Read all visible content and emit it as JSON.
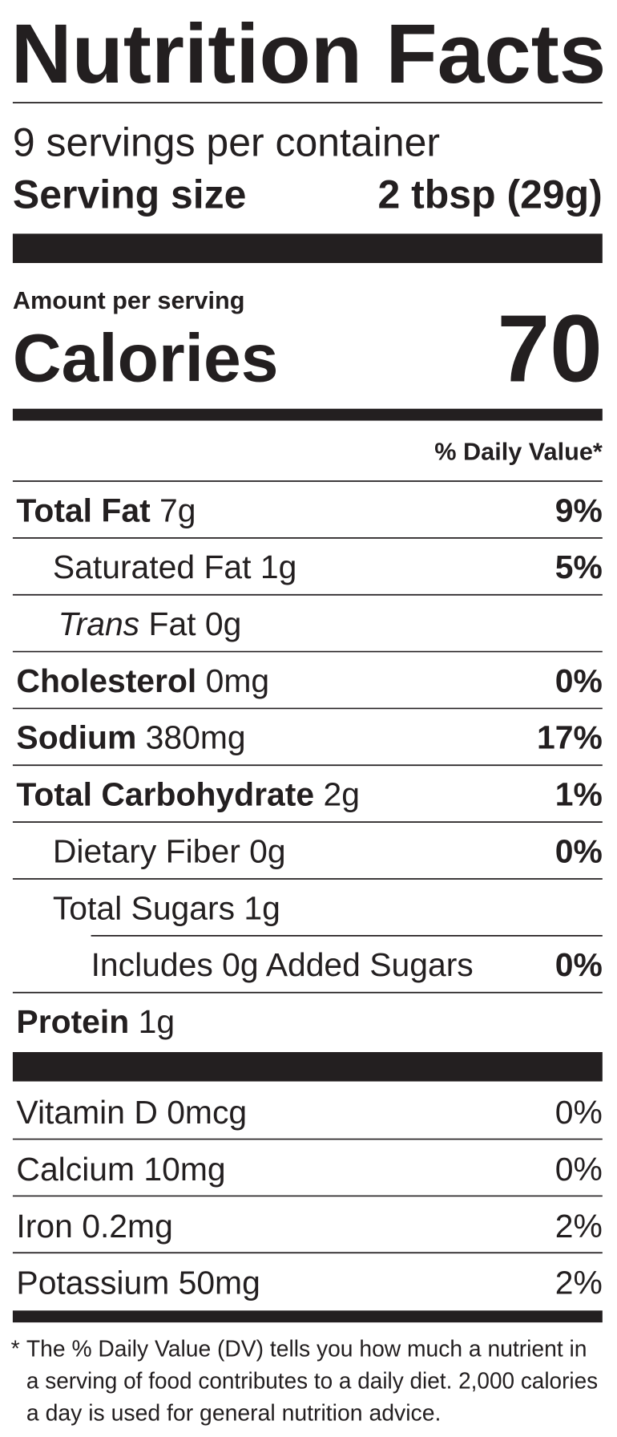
{
  "header": {
    "title": "Nutrition Facts",
    "servings": "9 servings per container",
    "serving_size_label": "Serving size",
    "serving_size_value": "2 tbsp (29g)"
  },
  "calories": {
    "amount_label": "Amount per serving",
    "label": "Calories",
    "value": "70"
  },
  "dv_header": "% Daily Value*",
  "nutrients": [
    {
      "name": "Total Fat",
      "amount": "7g",
      "dv": "9%"
    },
    {
      "name": "Saturated Fat",
      "amount": "1g",
      "dv": "5%"
    },
    {
      "name": "Trans",
      "amount": "Fat 0g"
    },
    {
      "name": "Cholesterol",
      "amount": "0mg",
      "dv": "0%"
    },
    {
      "name": "Sodium",
      "amount": "380mg",
      "dv": "17%"
    },
    {
      "name": "Total Carbohydrate",
      "amount": "2g",
      "dv": "1%"
    },
    {
      "name": "Dietary Fiber",
      "amount": "0g",
      "dv": "0%"
    },
    {
      "name": "Total Sugars",
      "amount": "1g"
    },
    {
      "name": "Includes 0g Added Sugars",
      "dv": "0%"
    },
    {
      "name": "Protein",
      "amount": "1g"
    }
  ],
  "vitamins": [
    {
      "name": "Vitamin D 0mcg",
      "dv": "0%"
    },
    {
      "name": "Calcium 10mg",
      "dv": "0%"
    },
    {
      "name": "Iron 0.2mg",
      "dv": "2%"
    },
    {
      "name": "Potassium 50mg",
      "dv": "2%"
    }
  ],
  "footnote": {
    "mark": "*",
    "lines": [
      "The % Daily Value (DV) tells you how much a nutrient in",
      "a serving of food contributes to a daily diet. 2,000 calories",
      "a day is used for general nutrition advice."
    ]
  }
}
